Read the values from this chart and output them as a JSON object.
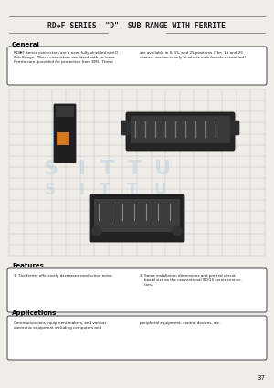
{
  "bg_color": "#f5f5f0",
  "page_bg": "#f0ede8",
  "title": "RD✱F SERIES  \"D\"  SUB RANGE WITH FERRITE",
  "title_fontsize": 5.8,
  "section_general": "General",
  "general_text_col1": "RD✱F Series connectors are a new, fully shielded and D\nSub Range.  These connectors are fitted with an inner\nFerrite core, provided for protection from EMI.  These",
  "general_text_col2": "are available in 9, 15, and 25 positions (The  15 and 25\ncontact version is only available with female connected).",
  "features_section": "Features",
  "features_text_col1": "1. The ferrite effectively decreases conduction noise.",
  "features_text_col2": "2. Same installation dimensions and printed circuit\n    board size as the conventional 9D/15 series connec-\n    tors.",
  "applications_section": "Applications",
  "applications_text_col1": "Communications equipment makers, and various\nelectronic equipment including computers and",
  "applications_text_col2": "peripheral equipment, control devices, etc.",
  "page_number": "37",
  "separator_color": "#666666",
  "box_edge_color": "#444444",
  "text_color": "#1a1a1a",
  "section_label_color": "#000000",
  "grid_color": "#bbbbbb",
  "watermark_color": "#b8cfe0"
}
